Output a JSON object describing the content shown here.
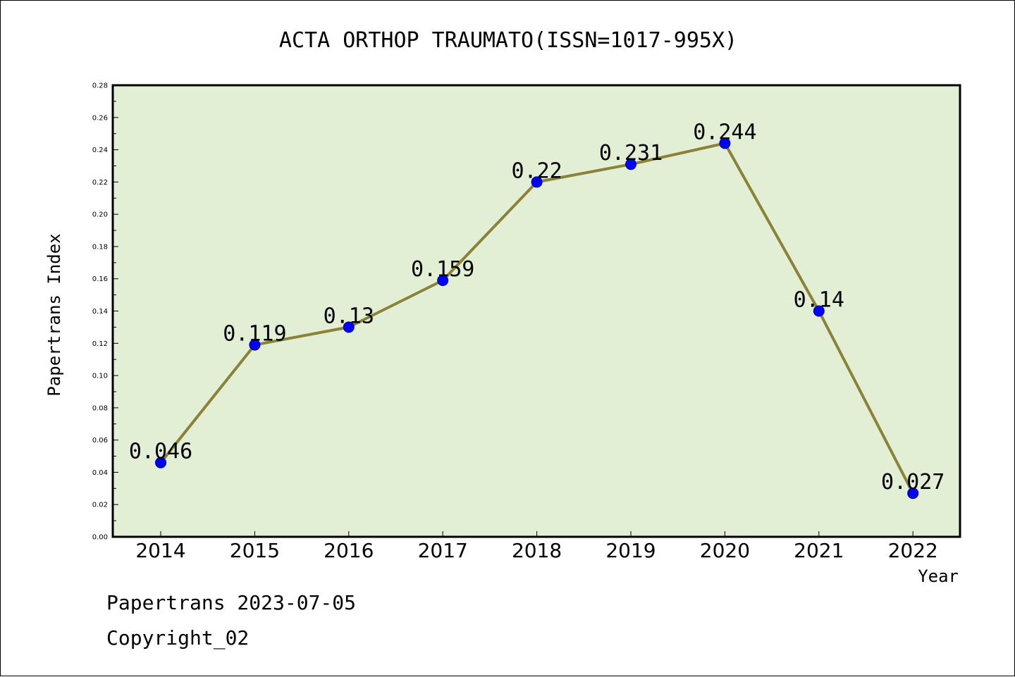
{
  "chart_data": {
    "type": "line",
    "title": "ACTA ORTHOP TRAUMATO(ISSN=1017-995X)",
    "xlabel": "Year",
    "ylabel": "Papertrans Index",
    "categories": [
      "2014",
      "2015",
      "2016",
      "2017",
      "2018",
      "2019",
      "2020",
      "2021",
      "2022"
    ],
    "series": [
      {
        "values": [
          0.046,
          0.119,
          0.13,
          0.159,
          0.22,
          0.231,
          0.244,
          0.14,
          0.027
        ],
        "data_labels": [
          "0.046",
          "0.119",
          "0.13",
          "0.159",
          "0.22",
          "0.231",
          "0.244",
          "0.14",
          "0.027"
        ]
      }
    ],
    "ylim": [
      0,
      0.28
    ],
    "yticks": [
      "0.00",
      "0.02",
      "0.04",
      "0.06",
      "0.08",
      "0.10",
      "0.12",
      "0.14",
      "0.16",
      "0.18",
      "0.20",
      "0.22",
      "0.24",
      "0.26",
      "0.28"
    ],
    "grid": false,
    "colors": {
      "plot_background": "#e2efd5",
      "line": "#8b8239",
      "marker": "#0000ff",
      "axis": "#000000"
    }
  },
  "footer": {
    "source": "Papertrans 2023-07-05",
    "copyright": "Copyright_02"
  }
}
